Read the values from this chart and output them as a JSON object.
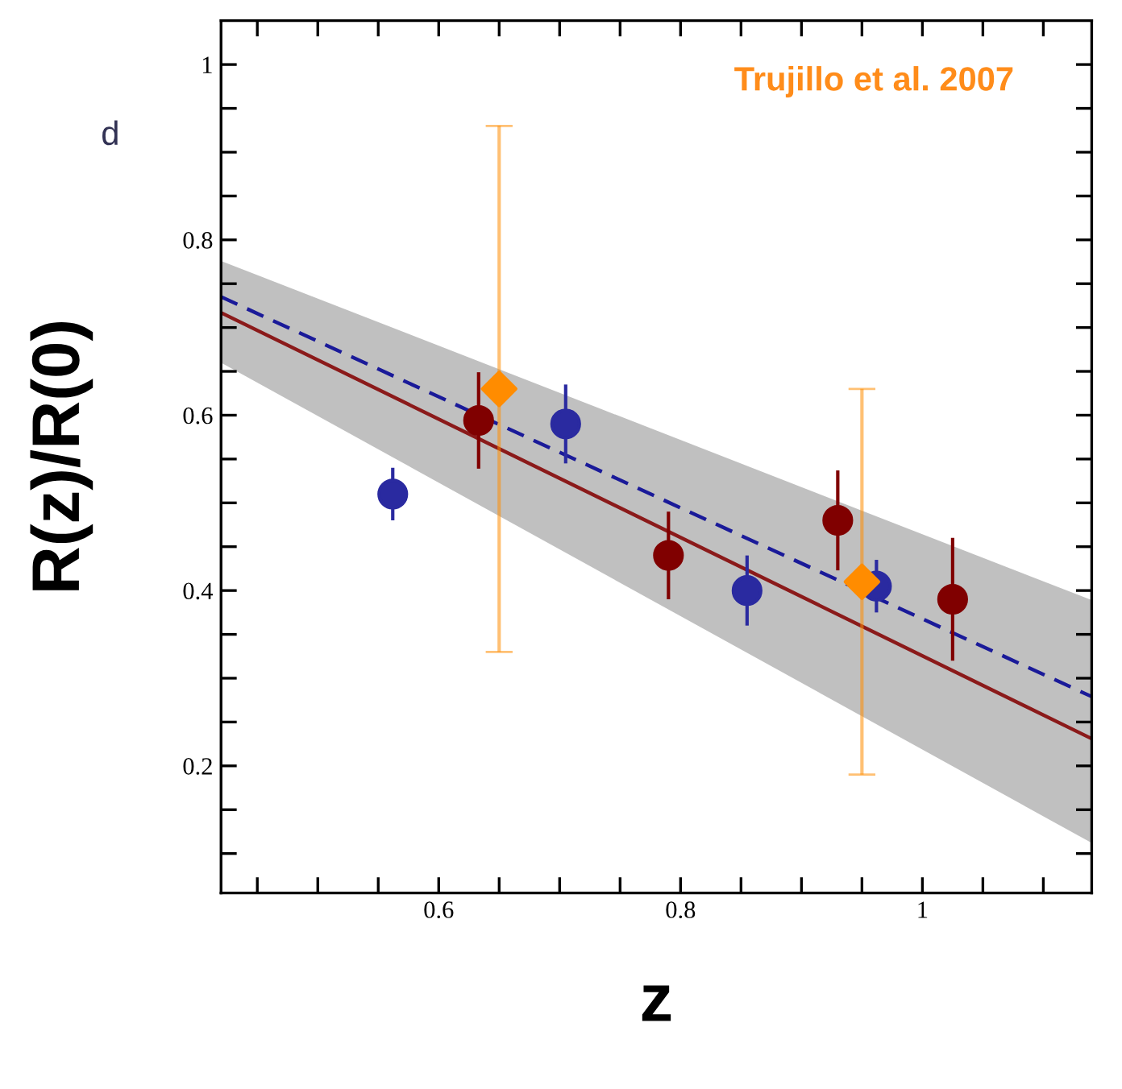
{
  "chart_data": {
    "type": "scatter",
    "xlabel": "z",
    "ylabel": "R(z)/R(0)",
    "xlim": [
      0.42,
      1.14
    ],
    "ylim": [
      0.055,
      1.05
    ],
    "xticks": [
      {
        "value": 0.45,
        "label": null
      },
      {
        "value": 0.5,
        "label": null
      },
      {
        "value": 0.55,
        "label": null
      },
      0.6,
      {
        "value": 0.65,
        "label": null
      },
      {
        "value": 0.7,
        "label": null
      },
      {
        "value": 0.75,
        "label": null
      },
      0.8,
      {
        "value": 0.85,
        "label": null
      },
      {
        "value": 0.9,
        "label": null
      },
      {
        "value": 0.95,
        "label": null
      },
      1,
      {
        "value": 1.05,
        "label": null
      },
      {
        "value": 1.1,
        "label": null
      }
    ],
    "yticks": [
      {
        "value": 0.1,
        "label": null
      },
      {
        "value": 0.15,
        "label": null
      },
      0.2,
      {
        "value": 0.25,
        "label": null
      },
      {
        "value": 0.3,
        "label": null
      },
      {
        "value": 0.35,
        "label": null
      },
      0.4,
      {
        "value": 0.45,
        "label": null
      },
      {
        "value": 0.5,
        "label": null
      },
      {
        "value": 0.55,
        "label": null
      },
      0.6,
      {
        "value": 0.65,
        "label": null
      },
      {
        "value": 0.7,
        "label": null
      },
      {
        "value": 0.75,
        "label": null
      },
      0.8,
      {
        "value": 0.85,
        "label": null
      },
      {
        "value": 0.9,
        "label": null
      },
      {
        "value": 0.95,
        "label": null
      },
      1
    ],
    "grid": false,
    "legend": false,
    "series": [
      {
        "type": "line",
        "color": "#8b1a1a",
        "line_style": "solid",
        "marker": "none",
        "x": [
          0.42,
          1.14
        ],
        "values": [
          0.717,
          0.231
        ],
        "lower": [
          0.66,
          0.112
        ],
        "upper": [
          0.776,
          0.389
        ]
      },
      {
        "type": "line",
        "color": "#1a1a99",
        "line_style": "dashed",
        "marker": "none",
        "x": [
          0.42,
          1.14
        ],
        "values": [
          0.735,
          0.279
        ]
      },
      {
        "color": "#800000",
        "marker": "circle",
        "x": [
          0.633,
          0.79,
          0.93,
          1.025
        ],
        "values": [
          0.594,
          0.44,
          0.48,
          0.39
        ],
        "errors": [
          0.055,
          0.05,
          0.057,
          0.07
        ]
      },
      {
        "color": "#2a2aa0",
        "marker": "circle",
        "x": [
          0.562,
          0.705,
          0.855,
          0.962
        ],
        "values": [
          0.51,
          0.59,
          0.4,
          0.405
        ],
        "errors": [
          0.03,
          0.045,
          0.04,
          0.03
        ]
      },
      {
        "color": "#ff8c00",
        "marker": "diamond",
        "x": [
          0.65,
          0.95
        ],
        "values": [
          0.63,
          0.41
        ],
        "errors": [
          [
            0.33,
            0.93
          ],
          [
            0.19,
            0.63
          ]
        ]
      }
    ],
    "annotations": [
      "Trujillo et al. 2007",
      "d"
    ]
  }
}
